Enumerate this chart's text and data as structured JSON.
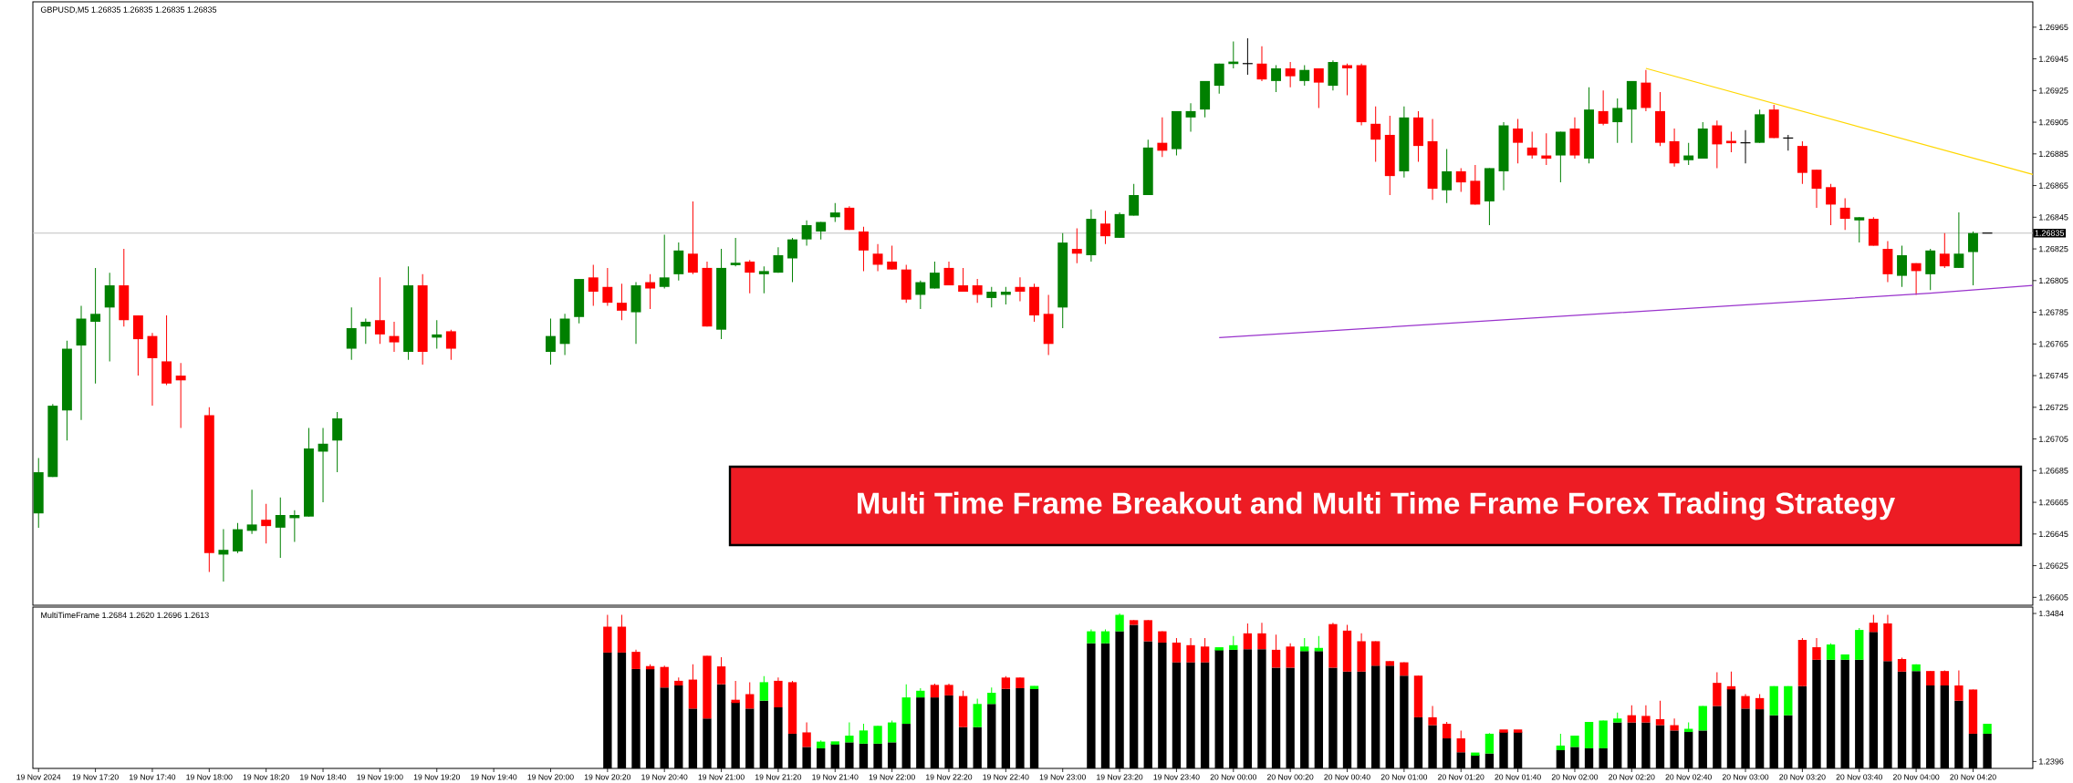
{
  "chart_data": [
    {
      "type": "candlestick",
      "title": "Multi Time Frame Breakout and Multi Time Frame Forex Trading Strategy",
      "annotations": [
        "GBPUSD,M5 1.26835 1.26835 1.26835 1.26835"
      ],
      "x": [
        "2024-11-19T17:00",
        "2024-11-19T17:05",
        "2024-11-19T17:10",
        "2024-11-19T17:15",
        "2024-11-19T17:20",
        "2024-11-19T17:25",
        "2024-11-19T17:30",
        "2024-11-19T17:35",
        "2024-11-19T17:40",
        "2024-11-19T17:45",
        "2024-11-19T17:50",
        "2024-11-19T18:00",
        "2024-11-19T18:05",
        "2024-11-19T18:10",
        "2024-11-19T18:15",
        "2024-11-19T18:20",
        "2024-11-19T18:25",
        "2024-11-19T18:30",
        "2024-11-19T18:35",
        "2024-11-19T18:40",
        "2024-11-19T18:45",
        "2024-11-19T18:50",
        "2024-11-19T18:55",
        "2024-11-19T19:00",
        "2024-11-19T19:05",
        "2024-11-19T19:10",
        "2024-11-19T19:15",
        "2024-11-19T19:20",
        "2024-11-19T19:25",
        "2024-11-19T20:00",
        "2024-11-19T20:05",
        "2024-11-19T20:10",
        "2024-11-19T20:15",
        "2024-11-19T20:20",
        "2024-11-19T20:25",
        "2024-11-19T20:30",
        "2024-11-19T20:35",
        "2024-11-19T20:40",
        "2024-11-19T20:45",
        "2024-11-19T20:50",
        "2024-11-19T20:55",
        "2024-11-19T21:00",
        "2024-11-19T21:05",
        "2024-11-19T21:10",
        "2024-11-19T21:15",
        "2024-11-19T21:20",
        "2024-11-19T21:25",
        "2024-11-19T21:30",
        "2024-11-19T21:35",
        "2024-11-19T21:40",
        "2024-11-19T21:45",
        "2024-11-19T21:50",
        "2024-11-19T21:55",
        "2024-11-19T22:00",
        "2024-11-19T22:05",
        "2024-11-19T22:10",
        "2024-11-19T22:15",
        "2024-11-19T22:20",
        "2024-11-19T22:25",
        "2024-11-19T22:30",
        "2024-11-19T22:35",
        "2024-11-19T22:40",
        "2024-11-19T22:45",
        "2024-11-19T22:50",
        "2024-11-19T22:55",
        "2024-11-19T23:00",
        "2024-11-19T23:05",
        "2024-11-19T23:10",
        "2024-11-19T23:15",
        "2024-11-19T23:20",
        "2024-11-19T23:25",
        "2024-11-19T23:30",
        "2024-11-19T23:35",
        "2024-11-19T23:40",
        "2024-11-19T23:45",
        "2024-11-19T23:50",
        "2024-11-19T23:55",
        "2024-11-20T00:00",
        "2024-11-20T00:05",
        "2024-11-20T00:10",
        "2024-11-20T00:15",
        "2024-11-20T00:20",
        "2024-11-20T00:25",
        "2024-11-20T00:30",
        "2024-11-20T00:35",
        "2024-11-20T00:40",
        "2024-11-20T00:45",
        "2024-11-20T00:50",
        "2024-11-20T00:55",
        "2024-11-20T01:00",
        "2024-11-20T01:05",
        "2024-11-20T01:10",
        "2024-11-20T01:15",
        "2024-11-20T01:20",
        "2024-11-20T01:25",
        "2024-11-20T01:30",
        "2024-11-20T01:35",
        "2024-11-20T01:40",
        "2024-11-20T01:45",
        "2024-11-20T01:50",
        "2024-11-20T01:55",
        "2024-11-20T02:00",
        "2024-11-20T02:05",
        "2024-11-20T02:10",
        "2024-11-20T02:15",
        "2024-11-20T02:20",
        "2024-11-20T02:25",
        "2024-11-20T02:30",
        "2024-11-20T02:35",
        "2024-11-20T02:40",
        "2024-11-20T02:45",
        "2024-11-20T02:50",
        "2024-11-20T02:55",
        "2024-11-20T03:00",
        "2024-11-20T03:05",
        "2024-11-20T03:10",
        "2024-11-20T03:15",
        "2024-11-20T03:20",
        "2024-11-20T03:25",
        "2024-11-20T03:30",
        "2024-11-20T03:35",
        "2024-11-20T03:40",
        "2024-11-20T03:45",
        "2024-11-20T03:50",
        "2024-11-20T03:55",
        "2024-11-20T04:00",
        "2024-11-20T04:05",
        "2024-11-20T04:10",
        "2024-11-20T04:15",
        "2024-11-20T04:20",
        "2024-11-20T04:25"
      ],
      "ohlc": [
        [
          1.26658,
          1.26693,
          1.26649,
          1.26684
        ],
        [
          1.26681,
          1.26727,
          1.26681,
          1.26726
        ],
        [
          1.26723,
          1.26767,
          1.26704,
          1.26762
        ],
        [
          1.26764,
          1.26789,
          1.26717,
          1.26781
        ],
        [
          1.26779,
          1.26813,
          1.2674,
          1.26784
        ],
        [
          1.26788,
          1.2681,
          1.26754,
          1.26802
        ],
        [
          1.26802,
          1.26825,
          1.26776,
          1.2678
        ],
        [
          1.26783,
          1.26783,
          1.26745,
          1.26768
        ],
        [
          1.2677,
          1.26772,
          1.26726,
          1.26756
        ],
        [
          1.26754,
          1.26783,
          1.26739,
          1.2674
        ],
        [
          1.26745,
          1.26753,
          1.26712,
          1.26742
        ],
        [
          1.2672,
          1.26725,
          1.26621,
          1.26633
        ],
        [
          1.26632,
          1.26648,
          1.26615,
          1.26635
        ],
        [
          1.26634,
          1.26652,
          1.26633,
          1.26648
        ],
        [
          1.26647,
          1.26673,
          1.26645,
          1.26651
        ],
        [
          1.26654,
          1.26664,
          1.26639,
          1.2665
        ],
        [
          1.26649,
          1.26668,
          1.2663,
          1.26657
        ],
        [
          1.26655,
          1.2666,
          1.2664,
          1.26657
        ],
        [
          1.26656,
          1.26712,
          1.26656,
          1.26699
        ],
        [
          1.26697,
          1.26712,
          1.26665,
          1.26702
        ],
        [
          1.26704,
          1.26722,
          1.26684,
          1.26718
        ],
        [
          1.26762,
          1.26788,
          1.26755,
          1.26775
        ],
        [
          1.26776,
          1.26781,
          1.26765,
          1.26779
        ],
        [
          1.2678,
          1.26807,
          1.26765,
          1.26771
        ],
        [
          1.2677,
          1.26779,
          1.2676,
          1.26766
        ],
        [
          1.2676,
          1.26814,
          1.26755,
          1.26802
        ],
        [
          1.26802,
          1.26809,
          1.26752,
          1.2676
        ],
        [
          1.26769,
          1.2678,
          1.26762,
          1.26771
        ],
        [
          1.26773,
          1.26774,
          1.26755,
          1.26762
        ],
        [
          1.2676,
          1.26781,
          1.26752,
          1.2677
        ],
        [
          1.26765,
          1.26784,
          1.26758,
          1.26781
        ],
        [
          1.26782,
          1.26806,
          1.26778,
          1.26806
        ],
        [
          1.26807,
          1.26815,
          1.26789,
          1.26798
        ],
        [
          1.26801,
          1.26813,
          1.26789,
          1.26791
        ],
        [
          1.26791,
          1.26803,
          1.2678,
          1.26786
        ],
        [
          1.26785,
          1.26804,
          1.26765,
          1.26802
        ],
        [
          1.26804,
          1.26809,
          1.26787,
          1.268
        ],
        [
          1.26801,
          1.26834,
          1.268,
          1.26807
        ],
        [
          1.26809,
          1.26829,
          1.26805,
          1.26824
        ],
        [
          1.26822,
          1.26855,
          1.26809,
          1.2681
        ],
        [
          1.26813,
          1.26817,
          1.26776,
          1.26776
        ],
        [
          1.26774,
          1.26825,
          1.26768,
          1.26813
        ],
        [
          1.26815,
          1.26832,
          1.26814,
          1.26816
        ],
        [
          1.26817,
          1.26818,
          1.26797,
          1.2681
        ],
        [
          1.26809,
          1.26814,
          1.26797,
          1.26811
        ],
        [
          1.2681,
          1.26826,
          1.2681,
          1.26821
        ],
        [
          1.26819,
          1.26832,
          1.26804,
          1.26831
        ],
        [
          1.26831,
          1.26843,
          1.26827,
          1.2684
        ],
        [
          1.26836,
          1.26842,
          1.26831,
          1.26842
        ],
        [
          1.26845,
          1.26854,
          1.26842,
          1.26848
        ],
        [
          1.26851,
          1.26852,
          1.26837,
          1.26837
        ],
        [
          1.26836,
          1.26839,
          1.26811,
          1.26824
        ],
        [
          1.26822,
          1.26828,
          1.26811,
          1.26815
        ],
        [
          1.26817,
          1.26827,
          1.26812,
          1.26812
        ],
        [
          1.26812,
          1.26815,
          1.26791,
          1.26793
        ],
        [
          1.26796,
          1.26805,
          1.26787,
          1.26804
        ],
        [
          1.268,
          1.26817,
          1.268,
          1.2681
        ],
        [
          1.26813,
          1.26817,
          1.26802,
          1.26802
        ],
        [
          1.26802,
          1.26813,
          1.26798,
          1.26798
        ],
        [
          1.26802,
          1.26806,
          1.26791,
          1.26796
        ],
        [
          1.26794,
          1.26801,
          1.26788,
          1.26798
        ],
        [
          1.26796,
          1.26801,
          1.2679,
          1.26798
        ],
        [
          1.26801,
          1.26807,
          1.26792,
          1.26798
        ],
        [
          1.26801,
          1.26803,
          1.26779,
          1.26783
        ],
        [
          1.26784,
          1.26796,
          1.26758,
          1.26765
        ],
        [
          1.26788,
          1.26835,
          1.26775,
          1.26829
        ],
        [
          1.26825,
          1.26838,
          1.26816,
          1.26822
        ],
        [
          1.26821,
          1.2685,
          1.26817,
          1.26844
        ],
        [
          1.26841,
          1.26849,
          1.26828,
          1.26833
        ],
        [
          1.26832,
          1.26848,
          1.26832,
          1.26847
        ],
        [
          1.26846,
          1.26866,
          1.26846,
          1.26859
        ],
        [
          1.26859,
          1.26894,
          1.26859,
          1.26889
        ],
        [
          1.26892,
          1.26908,
          1.26883,
          1.26887
        ],
        [
          1.26888,
          1.26912,
          1.26884,
          1.26912
        ],
        [
          1.26908,
          1.26917,
          1.26899,
          1.26912
        ],
        [
          1.26913,
          1.26931,
          1.26908,
          1.26931
        ],
        [
          1.26928,
          1.26942,
          1.26923,
          1.26942
        ],
        [
          1.26942,
          1.26956,
          1.26939,
          1.26943
        ],
        [
          1.26942,
          1.26958,
          1.26935,
          1.26942
        ],
        [
          1.26942,
          1.26953,
          1.26931,
          1.26932
        ],
        [
          1.26931,
          1.26941,
          1.26924,
          1.26939
        ],
        [
          1.26939,
          1.26943,
          1.26927,
          1.26934
        ],
        [
          1.26931,
          1.26941,
          1.26928,
          1.26938
        ],
        [
          1.26939,
          1.26939,
          1.26914,
          1.2693
        ],
        [
          1.26928,
          1.26944,
          1.26925,
          1.26943
        ],
        [
          1.26941,
          1.26942,
          1.26922,
          1.26939
        ],
        [
          1.26941,
          1.26942,
          1.26903,
          1.26905
        ],
        [
          1.26904,
          1.26915,
          1.2688,
          1.26894
        ],
        [
          1.26897,
          1.26909,
          1.26859,
          1.26871
        ],
        [
          1.26874,
          1.26915,
          1.2687,
          1.26908
        ],
        [
          1.26908,
          1.26912,
          1.2688,
          1.2689
        ],
        [
          1.26893,
          1.26907,
          1.26856,
          1.26863
        ],
        [
          1.26862,
          1.26888,
          1.26854,
          1.26874
        ],
        [
          1.26874,
          1.26876,
          1.26861,
          1.26867
        ],
        [
          1.26868,
          1.26878,
          1.26853,
          1.26853
        ],
        [
          1.26855,
          1.26876,
          1.2684,
          1.26876
        ],
        [
          1.26874,
          1.26905,
          1.26862,
          1.26903
        ],
        [
          1.26901,
          1.26907,
          1.26879,
          1.26892
        ],
        [
          1.26889,
          1.26899,
          1.26882,
          1.26884
        ],
        [
          1.26884,
          1.26898,
          1.26878,
          1.26882
        ],
        [
          1.26884,
          1.26899,
          1.26867,
          1.26899
        ],
        [
          1.26901,
          1.26908,
          1.26882,
          1.26884
        ],
        [
          1.26882,
          1.26927,
          1.26879,
          1.26913
        ],
        [
          1.26912,
          1.26925,
          1.26903,
          1.26904
        ],
        [
          1.26905,
          1.2692,
          1.26892,
          1.26914
        ],
        [
          1.26913,
          1.26931,
          1.26892,
          1.26931
        ],
        [
          1.2693,
          1.26938,
          1.26912,
          1.26914
        ],
        [
          1.26912,
          1.26924,
          1.2689,
          1.26892
        ],
        [
          1.26893,
          1.26901,
          1.26877,
          1.26879
        ],
        [
          1.26881,
          1.26892,
          1.26878,
          1.26884
        ],
        [
          1.26882,
          1.26905,
          1.26882,
          1.26901
        ],
        [
          1.26903,
          1.26906,
          1.26876,
          1.26891
        ],
        [
          1.26893,
          1.26899,
          1.26886,
          1.26892
        ],
        [
          1.26892,
          1.269,
          1.26879,
          1.26892
        ],
        [
          1.26892,
          1.26913,
          1.26892,
          1.2691
        ],
        [
          1.26913,
          1.26916,
          1.26895,
          1.26895
        ],
        [
          1.26895,
          1.26897,
          1.26887,
          1.26895
        ],
        [
          1.2689,
          1.26893,
          1.26866,
          1.26873
        ],
        [
          1.26875,
          1.26875,
          1.26851,
          1.26863
        ],
        [
          1.26864,
          1.26866,
          1.2684,
          1.26853
        ],
        [
          1.26851,
          1.26857,
          1.26837,
          1.26844
        ],
        [
          1.26843,
          1.26845,
          1.26829,
          1.26845
        ],
        [
          1.26844,
          1.26845,
          1.26827,
          1.26827
        ],
        [
          1.26825,
          1.2683,
          1.26804,
          1.26809
        ],
        [
          1.26808,
          1.26827,
          1.26801,
          1.26821
        ],
        [
          1.26816,
          1.26816,
          1.26796,
          1.26811
        ],
        [
          1.26809,
          1.26825,
          1.26799,
          1.26824
        ],
        [
          1.26822,
          1.26835,
          1.26813,
          1.26814
        ],
        [
          1.26813,
          1.26848,
          1.26813,
          1.26822
        ],
        [
          1.26823,
          1.26836,
          1.26802,
          1.26835
        ],
        [
          1.26835,
          1.26835,
          1.26835,
          1.26835
        ]
      ],
      "colors": [
        "#008000",
        "#008000",
        "#008000",
        "#008000",
        "#008000",
        "#008000",
        "#ff0000",
        "#ff0000",
        "#ff0000",
        "#ff0000",
        "#ff0000",
        "#ff0000",
        "#008000",
        "#008000",
        "#008000",
        "#ff0000",
        "#008000",
        "#008000",
        "#008000",
        "#008000",
        "#008000",
        "#008000",
        "#008000",
        "#ff0000",
        "#ff0000",
        "#008000",
        "#ff0000",
        "#008000",
        "#ff0000",
        "#008000",
        "#008000",
        "#008000",
        "#ff0000",
        "#ff0000",
        "#ff0000",
        "#008000",
        "#ff0000",
        "#008000",
        "#008000",
        "#ff0000",
        "#ff0000",
        "#008000",
        "#008000",
        "#ff0000",
        "#008000",
        "#008000",
        "#008000",
        "#008000",
        "#008000",
        "#008000",
        "#ff0000",
        "#ff0000",
        "#ff0000",
        "#ff0000",
        "#ff0000",
        "#008000",
        "#008000",
        "#ff0000",
        "#ff0000",
        "#ff0000",
        "#008000",
        "#008000",
        "#ff0000",
        "#ff0000",
        "#ff0000",
        "#008000",
        "#ff0000",
        "#008000",
        "#ff0000",
        "#008000",
        "#008000",
        "#008000",
        "#ff0000",
        "#008000",
        "#008000",
        "#008000",
        "#008000",
        "#008000",
        "#000000",
        "#ff0000",
        "#008000",
        "#ff0000",
        "#008000",
        "#ff0000",
        "#008000",
        "#ff0000",
        "#ff0000",
        "#ff0000",
        "#ff0000",
        "#008000",
        "#ff0000",
        "#ff0000",
        "#008000",
        "#ff0000",
        "#ff0000",
        "#008000",
        "#008000",
        "#ff0000",
        "#ff0000",
        "#ff0000",
        "#008000",
        "#ff0000",
        "#008000",
        "#ff0000",
        "#008000",
        "#008000",
        "#ff0000",
        "#ff0000",
        "#ff0000",
        "#008000",
        "#008000",
        "#ff0000",
        "#ff0000",
        "#000000",
        "#008000",
        "#ff0000",
        "#000000",
        "#ff0000",
        "#ff0000",
        "#ff0000",
        "#ff0000",
        "#008000",
        "#ff0000",
        "#ff0000",
        "#008000",
        "#ff0000",
        "#008000",
        "#ff0000",
        "#008000",
        "#008000",
        "#000000"
      ],
      "series": [
        {
          "type": "line",
          "color": "#ffd700",
          "x": [
            "2024-11-20T02:25",
            "2024-11-20T04:41"
          ],
          "values": [
            1.26939,
            1.26872
          ]
        },
        {
          "type": "line",
          "color": "#9932cc",
          "x": [
            "2024-11-19T23:55",
            "2024-11-20T04:05",
            "2024-11-20T04:41"
          ],
          "values": [
            1.26769,
            1.26797,
            1.26802
          ]
        }
      ],
      "xlim": [
        "2024-11-19T16:58",
        "2024-11-20T04:41"
      ],
      "ylim": [
        1.266,
        1.26981
      ],
      "yticks": [
        1.26605,
        1.26625,
        1.26645,
        1.26665,
        1.26685,
        1.26705,
        1.26725,
        1.26745,
        1.26765,
        1.26785,
        1.26805,
        1.26825,
        1.26845,
        1.26865,
        1.26885,
        1.26905,
        1.26925,
        1.26945,
        1.26965
      ],
      "ref_lines": [
        {
          "axis": "y",
          "value": 1.26835,
          "label": "1.26835",
          "color": "#c0c0c0"
        }
      ],
      "tick_labels": "y"
    },
    {
      "type": "candlestick",
      "annotations": [
        "MultiTimeFrame 1.2684 1.2620 1.2696 1.2613"
      ],
      "x": [
        "2024-11-19T20:20",
        "2024-11-19T20:25",
        "2024-11-19T20:30",
        "2024-11-19T20:35",
        "2024-11-19T20:40",
        "2024-11-19T20:45",
        "2024-11-19T20:50",
        "2024-11-19T20:55",
        "2024-11-19T21:00",
        "2024-11-19T21:05",
        "2024-11-19T21:10",
        "2024-11-19T21:15",
        "2024-11-19T21:20",
        "2024-11-19T21:25",
        "2024-11-19T21:30",
        "2024-11-19T21:35",
        "2024-11-19T21:40",
        "2024-11-19T21:45",
        "2024-11-19T21:50",
        "2024-11-19T21:55",
        "2024-11-19T22:00",
        "2024-11-19T22:05",
        "2024-11-19T22:10",
        "2024-11-19T22:15",
        "2024-11-19T22:20",
        "2024-11-19T22:25",
        "2024-11-19T22:30",
        "2024-11-19T22:35",
        "2024-11-19T22:40",
        "2024-11-19T22:45",
        "2024-11-19T22:50",
        "2024-11-19T22:55",
        "2024-11-19T23:00",
        "2024-11-19T23:05",
        "2024-11-19T23:10",
        "2024-11-19T23:15",
        "2024-11-19T23:20",
        "2024-11-19T23:25",
        "2024-11-19T23:30",
        "2024-11-19T23:35",
        "2024-11-19T23:40",
        "2024-11-19T23:45",
        "2024-11-19T23:50",
        "2024-11-19T23:55",
        "2024-11-20T00:00",
        "2024-11-20T00:05",
        "2024-11-20T00:10",
        "2024-11-20T00:15",
        "2024-11-20T00:20",
        "2024-11-20T00:25",
        "2024-11-20T00:30",
        "2024-11-20T00:35",
        "2024-11-20T00:40",
        "2024-11-20T00:45",
        "2024-11-20T00:50",
        "2024-11-20T00:55",
        "2024-11-20T01:00",
        "2024-11-20T01:05",
        "2024-11-20T01:10",
        "2024-11-20T01:15",
        "2024-11-20T01:20",
        "2024-11-20T01:25",
        "2024-11-20T01:30",
        "2024-11-20T01:35",
        "2024-11-20T01:40",
        "2024-11-20T01:45",
        "2024-11-20T01:50",
        "2024-11-20T01:55",
        "2024-11-20T02:00",
        "2024-11-20T02:05",
        "2024-11-20T02:10",
        "2024-11-20T02:15",
        "2024-11-20T02:20",
        "2024-11-20T02:25",
        "2024-11-20T02:30",
        "2024-11-20T02:35",
        "2024-11-20T02:40",
        "2024-11-20T02:45",
        "2024-11-20T02:50",
        "2024-11-20T02:55",
        "2024-11-20T03:00",
        "2024-11-20T03:05",
        "2024-11-20T03:10",
        "2024-11-20T03:15",
        "2024-11-20T03:20",
        "2024-11-20T03:25",
        "2024-11-20T03:30",
        "2024-11-20T03:35",
        "2024-11-20T03:40",
        "2024-11-20T03:45",
        "2024-11-20T03:50",
        "2024-11-20T03:55",
        "2024-11-20T04:00",
        "2024-11-20T04:05",
        "2024-11-20T04:10",
        "2024-11-20T04:15",
        "2024-11-20T04:20",
        "2024-11-20T04:25"
      ],
      "ohlc": [
        [
          1.3387,
          1.3474,
          1.3197,
          1.3197
        ],
        [
          1.3387,
          1.3474,
          1.3197,
          1.3197
        ],
        [
          1.3202,
          1.3217,
          1.3076,
          1.3076
        ],
        [
          1.3095,
          1.311,
          1.3076,
          1.3076
        ],
        [
          1.3091,
          1.31,
          1.294,
          1.294
        ],
        [
          1.2989,
          1.3013,
          1.2955,
          1.2955
        ],
        [
          1.2998,
          1.311,
          1.2785,
          1.2785
        ],
        [
          1.3173,
          1.3173,
          1.2712,
          1.2712
        ],
        [
          1.3095,
          1.3163,
          1.2964,
          1.2964
        ],
        [
          1.2843,
          1.2989,
          1.2833,
          1.2833
        ],
        [
          1.2891,
          1.2979,
          1.2785,
          1.2785
        ],
        [
          1.2843,
          1.3023,
          1.2843,
          1.2979
        ],
        [
          1.2989,
          1.3013,
          1.2794,
          1.2794
        ],
        [
          1.2979,
          1.2989,
          1.26,
          1.26
        ],
        [
          1.261,
          1.2683,
          1.2503,
          1.2503
        ],
        [
          1.2493,
          1.2551,
          1.2493,
          1.2542
        ],
        [
          1.2527,
          1.2537,
          1.2527,
          1.2537
        ],
        [
          1.2537,
          1.2683,
          1.2537,
          1.2586
        ],
        [
          1.2527,
          1.2673,
          1.2527,
          1.2624
        ],
        [
          1.2527,
          1.2658,
          1.2527,
          1.2658
        ],
        [
          1.2537,
          1.2697,
          1.2537,
          1.2683
        ],
        [
          1.2673,
          1.2964,
          1.2673,
          1.2867
        ],
        [
          1.2867,
          1.2935,
          1.2867,
          1.2916
        ],
        [
          1.2959,
          1.2969,
          1.2867,
          1.2867
        ],
        [
          1.2959,
          1.2969,
          1.2882,
          1.2882
        ],
        [
          1.2877,
          1.2916,
          1.2649,
          1.2649
        ],
        [
          1.2649,
          1.2857,
          1.2649,
          1.2819
        ],
        [
          1.2819,
          1.294,
          1.2819,
          1.2901
        ],
        [
          1.3013,
          1.3023,
          1.293,
          1.293
        ],
        [
          1.3013,
          1.3013,
          1.2935,
          1.2935
        ],
        [
          1.293,
          1.295,
          1.293,
          1.295
        ],
        null,
        null,
        null,
        [
          1.3265,
          1.3367,
          1.3265,
          1.3353
        ],
        [
          1.3265,
          1.3367,
          1.3265,
          1.3353
        ],
        [
          1.3353,
          1.3484,
          1.3353,
          1.3474
        ],
        [
          1.3435,
          1.3435,
          1.3401,
          1.3401
        ],
        [
          1.3435,
          1.3435,
          1.328,
          1.328
        ],
        [
          1.3353,
          1.3353,
          1.327,
          1.327
        ],
        [
          1.327,
          1.3304,
          1.3125,
          1.3125
        ],
        [
          1.3251,
          1.3304,
          1.3125,
          1.3125
        ],
        [
          1.3241,
          1.3304,
          1.3125,
          1.3125
        ],
        [
          1.3217,
          1.3231,
          1.3217,
          1.3231
        ],
        [
          1.3217,
          1.3319,
          1.3217,
          1.3251
        ],
        [
          1.3338,
          1.3411,
          1.3222,
          1.3222
        ],
        [
          1.3338,
          1.3416,
          1.3222,
          1.3222
        ],
        [
          1.3217,
          1.3329,
          1.3086,
          1.3086
        ],
        [
          1.3241,
          1.3265,
          1.3086,
          1.3086
        ],
        [
          1.3207,
          1.3304,
          1.3207,
          1.3241
        ],
        [
          1.3207,
          1.3319,
          1.3207,
          1.3231
        ],
        [
          1.3406,
          1.3416,
          1.3086,
          1.3086
        ],
        [
          1.3358,
          1.3401,
          1.3057,
          1.3057
        ],
        [
          1.328,
          1.3338,
          1.3057,
          1.3057
        ],
        [
          1.328,
          1.328,
          1.31,
          1.31
        ],
        [
          1.3134,
          1.3134,
          1.31,
          1.31
        ],
        [
          1.3125,
          1.3125,
          1.3027,
          1.3027
        ],
        [
          1.3027,
          1.3027,
          1.2721,
          1.2721
        ],
        [
          1.2721,
          1.2804,
          1.2663,
          1.2663
        ],
        [
          1.2673,
          1.2687,
          1.2566,
          1.2566
        ],
        [
          1.2566,
          1.2624,
          1.2464,
          1.2464
        ],
        [
          1.2445,
          1.2455,
          1.2445,
          1.2455
        ],
        [
          1.2455,
          1.2605,
          1.2455,
          1.26
        ],
        [
          1.2624,
          1.2624,
          1.2615,
          1.2615
        ],
        [
          1.2624,
          1.2624,
          1.2615,
          1.2615
        ],
        null,
        null,
        [
          1.2479,
          1.26,
          1.2479,
          1.2513
        ],
        [
          1.2503,
          1.2586,
          1.2503,
          1.2586
        ],
        [
          1.2493,
          1.2687,
          1.2493,
          1.2687
        ],
        [
          1.2493,
          1.2697,
          1.2493,
          1.2697
        ],
        [
          1.2683,
          1.2755,
          1.2683,
          1.2712
        ],
        [
          1.2736,
          1.2809,
          1.2683,
          1.2683
        ],
        [
          1.2731,
          1.2809,
          1.2683,
          1.2683
        ],
        [
          1.2707,
          1.2843,
          1.2663,
          1.2663
        ],
        [
          1.2663,
          1.2712,
          1.2624,
          1.2624
        ],
        [
          1.2615,
          1.2683,
          1.2615,
          1.2634
        ],
        [
          1.2624,
          1.2804,
          1.2624,
          1.2804
        ],
        [
          1.2974,
          1.3052,
          1.2804,
          1.2804
        ],
        [
          1.2945,
          1.3057,
          1.293,
          1.293
        ],
        [
          1.2877,
          1.2891,
          1.2785,
          1.2785
        ],
        [
          1.2862,
          1.2891,
          1.278,
          1.278
        ],
        [
          1.2736,
          1.295,
          1.2736,
          1.295
        ],
        [
          1.2736,
          1.295,
          1.2736,
          1.295
        ],
        [
          1.329,
          1.3304,
          1.295,
          1.295
        ],
        [
          1.3236,
          1.3304,
          1.3144,
          1.3144
        ],
        [
          1.3144,
          1.3265,
          1.3144,
          1.3256
        ],
        [
          1.3144,
          1.3183,
          1.3144,
          1.3183
        ],
        [
          1.3144,
          1.3377,
          1.3144,
          1.3363
        ],
        [
          1.3416,
          1.3474,
          1.3348,
          1.3348
        ],
        [
          1.3411,
          1.3474,
          1.3134,
          1.3134
        ],
        [
          1.3149,
          1.3159,
          1.3057,
          1.3057
        ],
        [
          1.3061,
          1.311,
          1.3061,
          1.311
        ],
        [
          1.3061,
          1.3061,
          1.2955,
          1.2955
        ],
        [
          1.3061,
          1.3066,
          1.2955,
          1.2955
        ],
        [
          1.2955,
          1.3066,
          1.2843,
          1.2843
        ],
        [
          1.2925,
          1.2925,
          1.26,
          1.26
        ],
        [
          1.26,
          1.2673,
          1.26,
          1.2673
        ]
      ],
      "colors": [
        "#ff0000",
        "#ff0000",
        "#ff0000",
        "#ff0000",
        "#ff0000",
        "#ff0000",
        "#ff0000",
        "#ff0000",
        "#ff0000",
        "#ff0000",
        "#ff0000",
        "#00ff00",
        "#ff0000",
        "#ff0000",
        "#ff0000",
        "#00ff00",
        "#00ff00",
        "#00ff00",
        "#00ff00",
        "#00ff00",
        "#00ff00",
        "#00ff00",
        "#00ff00",
        "#ff0000",
        "#ff0000",
        "#ff0000",
        "#00ff00",
        "#00ff00",
        "#ff0000",
        "#ff0000",
        "#00ff00",
        null,
        null,
        null,
        "#00ff00",
        "#00ff00",
        "#00ff00",
        "#ff0000",
        "#ff0000",
        "#ff0000",
        "#ff0000",
        "#ff0000",
        "#ff0000",
        "#00ff00",
        "#00ff00",
        "#ff0000",
        "#ff0000",
        "#ff0000",
        "#ff0000",
        "#00ff00",
        "#00ff00",
        "#ff0000",
        "#ff0000",
        "#ff0000",
        "#ff0000",
        "#ff0000",
        "#ff0000",
        "#ff0000",
        "#ff0000",
        "#ff0000",
        "#ff0000",
        "#00ff00",
        "#00ff00",
        "#ff0000",
        "#ff0000",
        null,
        null,
        "#00ff00",
        "#00ff00",
        "#00ff00",
        "#00ff00",
        "#00ff00",
        "#ff0000",
        "#ff0000",
        "#ff0000",
        "#ff0000",
        "#00ff00",
        "#00ff00",
        "#ff0000",
        "#ff0000",
        "#ff0000",
        "#ff0000",
        "#00ff00",
        "#00ff00",
        "#ff0000",
        "#ff0000",
        "#00ff00",
        "#00ff00",
        "#00ff00",
        "#ff0000",
        "#ff0000",
        "#ff0000",
        "#00ff00",
        "#ff0000",
        "#ff0000",
        "#ff0000",
        "#ff0000",
        "#00ff00"
      ],
      "series": [
        {
          "type": "bar",
          "color": "#000000",
          "values": [
            1.3197,
            1.3197,
            1.3076,
            1.3076,
            1.294,
            1.2955,
            1.2785,
            1.2712,
            1.2964,
            1.2833,
            1.2785,
            1.2843,
            1.2794,
            1.26,
            1.2503,
            1.2493,
            1.2527,
            1.2537,
            1.2527,
            1.2527,
            1.2537,
            1.2673,
            1.2867,
            1.2867,
            1.2882,
            1.2649,
            1.2649,
            1.2819,
            1.293,
            1.2935,
            1.293,
            null,
            null,
            null,
            1.3265,
            1.3265,
            1.3353,
            1.3401,
            1.328,
            1.327,
            1.3125,
            1.3125,
            1.3125,
            1.3217,
            1.3217,
            1.3222,
            1.3222,
            1.3086,
            1.3086,
            1.3207,
            1.3207,
            1.3086,
            1.3057,
            1.3057,
            1.31,
            1.31,
            1.3027,
            1.2721,
            1.2663,
            1.2566,
            1.2464,
            1.2445,
            1.2455,
            1.2615,
            1.2615,
            null,
            null,
            1.2479,
            1.2503,
            1.2493,
            1.2493,
            1.2683,
            1.2683,
            1.2683,
            1.2663,
            1.2624,
            1.2615,
            1.2624,
            1.2804,
            1.293,
            1.2785,
            1.278,
            1.2736,
            1.2736,
            1.295,
            1.3144,
            1.3144,
            1.3144,
            1.3144,
            1.3348,
            1.3134,
            1.3057,
            1.3061,
            1.2955,
            1.2955,
            1.2843,
            1.26,
            1.26
          ]
        }
      ],
      "xlim": [
        "2024-11-19T16:58",
        "2024-11-20T04:41"
      ],
      "ylim": [
        1.2345,
        1.3531
      ],
      "yticks": [
        1.2396,
        1.3484
      ],
      "xticks": [
        {
          "value": "2024-11-19T17:00",
          "label": "19 Nov 2024"
        },
        {
          "value": "2024-11-19T17:20",
          "label": "19 Nov 17:20"
        },
        {
          "value": "2024-11-19T17:40",
          "label": "19 Nov 17:40"
        },
        {
          "value": "2024-11-19T18:00",
          "label": "19 Nov 18:00"
        },
        {
          "value": "2024-11-19T18:20",
          "label": "19 Nov 18:20"
        },
        {
          "value": "2024-11-19T18:40",
          "label": "19 Nov 18:40"
        },
        {
          "value": "2024-11-19T19:00",
          "label": "19 Nov 19:00"
        },
        {
          "value": "2024-11-19T19:20",
          "label": "19 Nov 19:20"
        },
        {
          "value": "2024-11-19T19:40",
          "label": "19 Nov 19:40"
        },
        {
          "value": "2024-11-19T20:00",
          "label": "19 Nov 20:00"
        },
        {
          "value": "2024-11-19T20:20",
          "label": "19 Nov 20:20"
        },
        {
          "value": "2024-11-19T20:40",
          "label": "19 Nov 20:40"
        },
        {
          "value": "2024-11-19T21:00",
          "label": "19 Nov 21:00"
        },
        {
          "value": "2024-11-19T21:20",
          "label": "19 Nov 21:20"
        },
        {
          "value": "2024-11-19T21:40",
          "label": "19 Nov 21:40"
        },
        {
          "value": "2024-11-19T22:00",
          "label": "19 Nov 22:00"
        },
        {
          "value": "2024-11-19T22:20",
          "label": "19 Nov 22:20"
        },
        {
          "value": "2024-11-19T22:40",
          "label": "19 Nov 22:40"
        },
        {
          "value": "2024-11-19T23:00",
          "label": "19 Nov 23:00"
        },
        {
          "value": "2024-11-19T23:20",
          "label": "19 Nov 23:20"
        },
        {
          "value": "2024-11-19T23:40",
          "label": "19 Nov 23:40"
        },
        {
          "value": "2024-11-20T00:00",
          "label": "20 Nov 00:00"
        },
        {
          "value": "2024-11-20T00:20",
          "label": "20 Nov 00:20"
        },
        {
          "value": "2024-11-20T00:40",
          "label": "20 Nov 00:40"
        },
        {
          "value": "2024-11-20T01:00",
          "label": "20 Nov 01:00"
        },
        {
          "value": "2024-11-20T01:20",
          "label": "20 Nov 01:20"
        },
        {
          "value": "2024-11-20T01:40",
          "label": "20 Nov 01:40"
        },
        {
          "value": "2024-11-20T02:00",
          "label": "20 Nov 02:00"
        },
        {
          "value": "2024-11-20T02:20",
          "label": "20 Nov 02:20"
        },
        {
          "value": "2024-11-20T02:40",
          "label": "20 Nov 02:40"
        },
        {
          "value": "2024-11-20T03:00",
          "label": "20 Nov 03:00"
        },
        {
          "value": "2024-11-20T03:20",
          "label": "20 Nov 03:20"
        },
        {
          "value": "2024-11-20T03:40",
          "label": "20 Nov 03:40"
        },
        {
          "value": "2024-11-20T04:00",
          "label": "20 Nov 04:00"
        },
        {
          "value": "2024-11-20T04:20",
          "label": "20 Nov 04:20"
        }
      ]
    }
  ]
}
